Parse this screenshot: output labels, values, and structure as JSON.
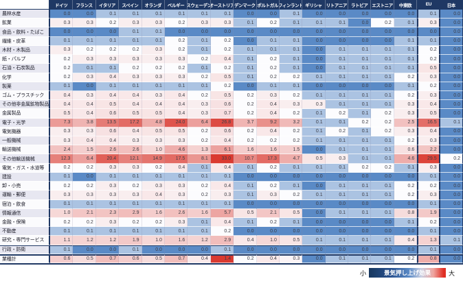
{
  "chart_data": {
    "type": "heatmap",
    "columns": [
      "ドイツ",
      "フランス",
      "イタリア",
      "スペイン",
      "オランダ",
      "ベルギー",
      "スウェーデン",
      "オーストリア",
      "デンマーク",
      "ポルトガル",
      "フィンランド",
      "ギリシャ",
      "リトアニア",
      "ラトビア",
      "エストニア",
      "中東欧",
      "EU",
      "日本"
    ],
    "rows": [
      {
        "label": "農林水産",
        "values": [
          0.0,
          0.0,
          0.1,
          0.1,
          0.1,
          0.1,
          0.1,
          0.1,
          0.0,
          0.0,
          0.1,
          0.0,
          0.0,
          0.0,
          0.0,
          0.0,
          0.1,
          0.0
        ]
      },
      {
        "label": "鉱業",
        "values": [
          0.3,
          0.3,
          0.2,
          0.3,
          0.3,
          0.2,
          0.3,
          0.3,
          0.1,
          0.2,
          0.1,
          0.1,
          0.1,
          0.0,
          0.2,
          0.1,
          0.3,
          0.0
        ]
      },
      {
        "label": "食品・飲料・たばこ",
        "values": [
          0.0,
          0.0,
          0.0,
          0.1,
          0.1,
          0.0,
          0.0,
          0.0,
          0.0,
          0.0,
          0.0,
          0.0,
          0.0,
          0.0,
          0.0,
          0.0,
          0.0,
          0.0
        ]
      },
      {
        "label": "繊維・皮革",
        "values": [
          0.1,
          0.1,
          0.1,
          0.1,
          0.1,
          0.2,
          0.1,
          0.2,
          0.0,
          0.1,
          0.1,
          0.0,
          0.0,
          0.0,
          0.0,
          0.1,
          0.1,
          0.0
        ]
      },
      {
        "label": "木材・木製品",
        "values": [
          0.3,
          0.2,
          0.2,
          0.2,
          0.3,
          0.2,
          0.1,
          0.2,
          0.1,
          0.1,
          0.1,
          0.0,
          0.1,
          0.1,
          0.1,
          0.1,
          0.2,
          0.0
        ]
      },
      {
        "label": "紙・パルプ",
        "values": [
          0.2,
          0.3,
          0.3,
          0.3,
          0.3,
          0.3,
          0.2,
          0.4,
          0.1,
          0.2,
          0.1,
          0.0,
          0.1,
          0.1,
          0.1,
          0.1,
          0.2,
          0.0
        ]
      },
      {
        "label": "石油・石炭製品",
        "values": [
          0.2,
          0.1,
          0.1,
          0.2,
          0.2,
          0.2,
          0.1,
          0.2,
          0.1,
          0.2,
          0.1,
          0.0,
          0.1,
          0.1,
          0.1,
          0.1,
          0.5,
          0.0
        ]
      },
      {
        "label": "化学",
        "values": [
          0.2,
          0.3,
          0.4,
          0.3,
          0.3,
          0.3,
          0.2,
          0.5,
          0.1,
          0.2,
          0.2,
          0.1,
          0.1,
          0.1,
          0.1,
          0.2,
          0.3,
          0.0
        ]
      },
      {
        "label": "製薬",
        "values": [
          0.1,
          0.0,
          0.1,
          0.1,
          0.1,
          0.1,
          0.1,
          0.2,
          0.0,
          0.1,
          0.1,
          0.0,
          0.0,
          0.0,
          0.0,
          0.1,
          0.2,
          0.0
        ]
      },
      {
        "label": "ゴム・プラスチック",
        "values": [
          0.4,
          0.3,
          0.4,
          0.4,
          0.3,
          0.4,
          0.2,
          0.5,
          0.2,
          0.3,
          0.2,
          0.1,
          0.1,
          0.1,
          0.1,
          0.2,
          0.3,
          0.0
        ]
      },
      {
        "label": "その他非金属鉱物製品",
        "values": [
          0.4,
          0.4,
          0.5,
          0.4,
          0.4,
          0.4,
          0.3,
          0.6,
          0.2,
          0.4,
          0.3,
          0.3,
          0.1,
          0.1,
          0.1,
          0.3,
          0.4,
          0.0
        ]
      },
      {
        "label": "金属製品",
        "values": [
          0.5,
          0.4,
          0.6,
          0.5,
          0.5,
          0.4,
          0.3,
          0.7,
          0.2,
          0.4,
          0.2,
          0.1,
          0.2,
          0.1,
          0.2,
          0.3,
          0.5,
          0.0
        ]
      },
      {
        "label": "電子・光学",
        "values": [
          7.3,
          3.8,
          13.5,
          17.2,
          4.8,
          24.0,
          6.4,
          26.8,
          3.7,
          9.2,
          3.2,
          0.1,
          0.1,
          0.2,
          0.2,
          2.5,
          16.5,
          0.1
        ]
      },
      {
        "label": "電気機器",
        "values": [
          0.3,
          0.3,
          0.6,
          0.4,
          0.5,
          0.5,
          0.2,
          0.6,
          0.2,
          0.4,
          0.2,
          0.1,
          0.2,
          0.1,
          0.2,
          0.3,
          0.4,
          0.0
        ]
      },
      {
        "label": "一般機械",
        "values": [
          0.3,
          0.4,
          0.4,
          0.3,
          0.3,
          0.3,
          0.2,
          0.4,
          0.2,
          0.2,
          0.2,
          0.1,
          0.1,
          0.1,
          0.1,
          0.2,
          0.3,
          0.0
        ]
      },
      {
        "label": "輸送機械",
        "values": [
          2.4,
          1.5,
          2.6,
          2.6,
          1.0,
          4.6,
          1.3,
          6.1,
          1.6,
          1.6,
          1.5,
          0.0,
          0.1,
          0.1,
          0.1,
          0.6,
          2.2,
          0.0
        ]
      },
      {
        "label": "その他輸送機械",
        "values": [
          12.3,
          6.4,
          20.4,
          12.1,
          14.9,
          17.5,
          8.1,
          33.0,
          10.7,
          17.3,
          4.7,
          0.5,
          0.3,
          0.1,
          0.1,
          4.6,
          29.5,
          0.2
        ]
      },
      {
        "label": "電気・ガス・水道等",
        "values": [
          0.2,
          0.2,
          0.3,
          0.3,
          0.2,
          0.4,
          0.1,
          0.4,
          0.1,
          0.2,
          0.1,
          0.1,
          0.1,
          0.2,
          0.2,
          0.1,
          0.3,
          0.0
        ]
      },
      {
        "label": "建設",
        "values": [
          0.1,
          0.0,
          0.1,
          0.1,
          0.1,
          0.1,
          0.1,
          0.1,
          0.0,
          0.0,
          0.0,
          0.0,
          0.0,
          0.0,
          0.0,
          0.0,
          0.1,
          0.0
        ]
      },
      {
        "label": "卸・小売",
        "values": [
          0.2,
          0.2,
          0.3,
          0.2,
          0.3,
          0.3,
          0.2,
          0.4,
          0.1,
          0.2,
          0.1,
          0.0,
          0.1,
          0.1,
          0.1,
          0.2,
          0.2,
          0.0
        ]
      },
      {
        "label": "運輸・郵便",
        "values": [
          0.3,
          0.3,
          0.3,
          0.3,
          0.4,
          0.3,
          0.2,
          0.3,
          0.1,
          0.3,
          0.2,
          0.1,
          0.1,
          0.1,
          0.1,
          0.2,
          0.3,
          0.0
        ]
      },
      {
        "label": "宿泊・飲食",
        "values": [
          0.1,
          0.1,
          0.1,
          0.1,
          0.1,
          0.1,
          0.1,
          0.1,
          0.0,
          0.0,
          0.0,
          0.0,
          0.0,
          0.0,
          0.0,
          0.0,
          0.1,
          0.0
        ]
      },
      {
        "label": "情報通信",
        "values": [
          1.0,
          2.1,
          2.3,
          2.9,
          1.6,
          2.6,
          1.6,
          5.7,
          0.5,
          2.1,
          0.5,
          0.0,
          0.1,
          0.1,
          0.1,
          0.8,
          1.9,
          0.0
        ]
      },
      {
        "label": "金融・保険",
        "values": [
          0.2,
          0.2,
          0.3,
          0.2,
          0.2,
          0.3,
          0.1,
          0.4,
          0.1,
          0.2,
          0.1,
          0.0,
          0.0,
          0.0,
          0.0,
          0.1,
          0.2,
          0.0
        ]
      },
      {
        "label": "不動産",
        "values": [
          0.1,
          0.1,
          0.1,
          0.1,
          0.1,
          0.1,
          0.1,
          0.2,
          0.0,
          0.0,
          0.0,
          0.0,
          0.0,
          0.0,
          0.0,
          0.0,
          0.1,
          0.0
        ]
      },
      {
        "label": "研究・専門サービス",
        "values": [
          1.1,
          1.2,
          1.2,
          1.9,
          1.0,
          1.6,
          1.2,
          2.9,
          0.4,
          1.0,
          0.5,
          0.1,
          0.1,
          0.1,
          0.1,
          0.4,
          1.3,
          0.1
        ]
      },
      {
        "label": "行政・防衛",
        "values": [
          0.1,
          0.0,
          0.0,
          0.1,
          0.0,
          0.0,
          0.0,
          0.1,
          0.0,
          0.0,
          0.0,
          0.0,
          0.0,
          0.0,
          0.0,
          0.0,
          0.1,
          0.0
        ],
        "admin": true
      },
      {
        "label": "業種計",
        "values": [
          0.6,
          0.5,
          0.7,
          0.6,
          0.5,
          0.7,
          0.4,
          1.4,
          0.2,
          0.4,
          0.3,
          0.0,
          0.1,
          0.1,
          0.1,
          0.2,
          0.8,
          0.0
        ],
        "total": true
      }
    ],
    "legend": {
      "min_label": "小",
      "title": "景気押し上げ効果",
      "max_label": "大"
    },
    "colors": {
      "header_bg": "#1F3864",
      "header_text": "#FFFFFF",
      "border_navy": "#1F3864",
      "scale_low": "#5A8AC6",
      "scale_mid": "#FCFCFE",
      "scale_high": "#DA3A30",
      "rowhead_alt_bg": "#E7E7F1",
      "rowhead_bg": "#FBFBFD"
    },
    "scale": {
      "min": 0.0,
      "mid": 0.2,
      "max": 33.0,
      "total_row_max": 1.4
    }
  }
}
